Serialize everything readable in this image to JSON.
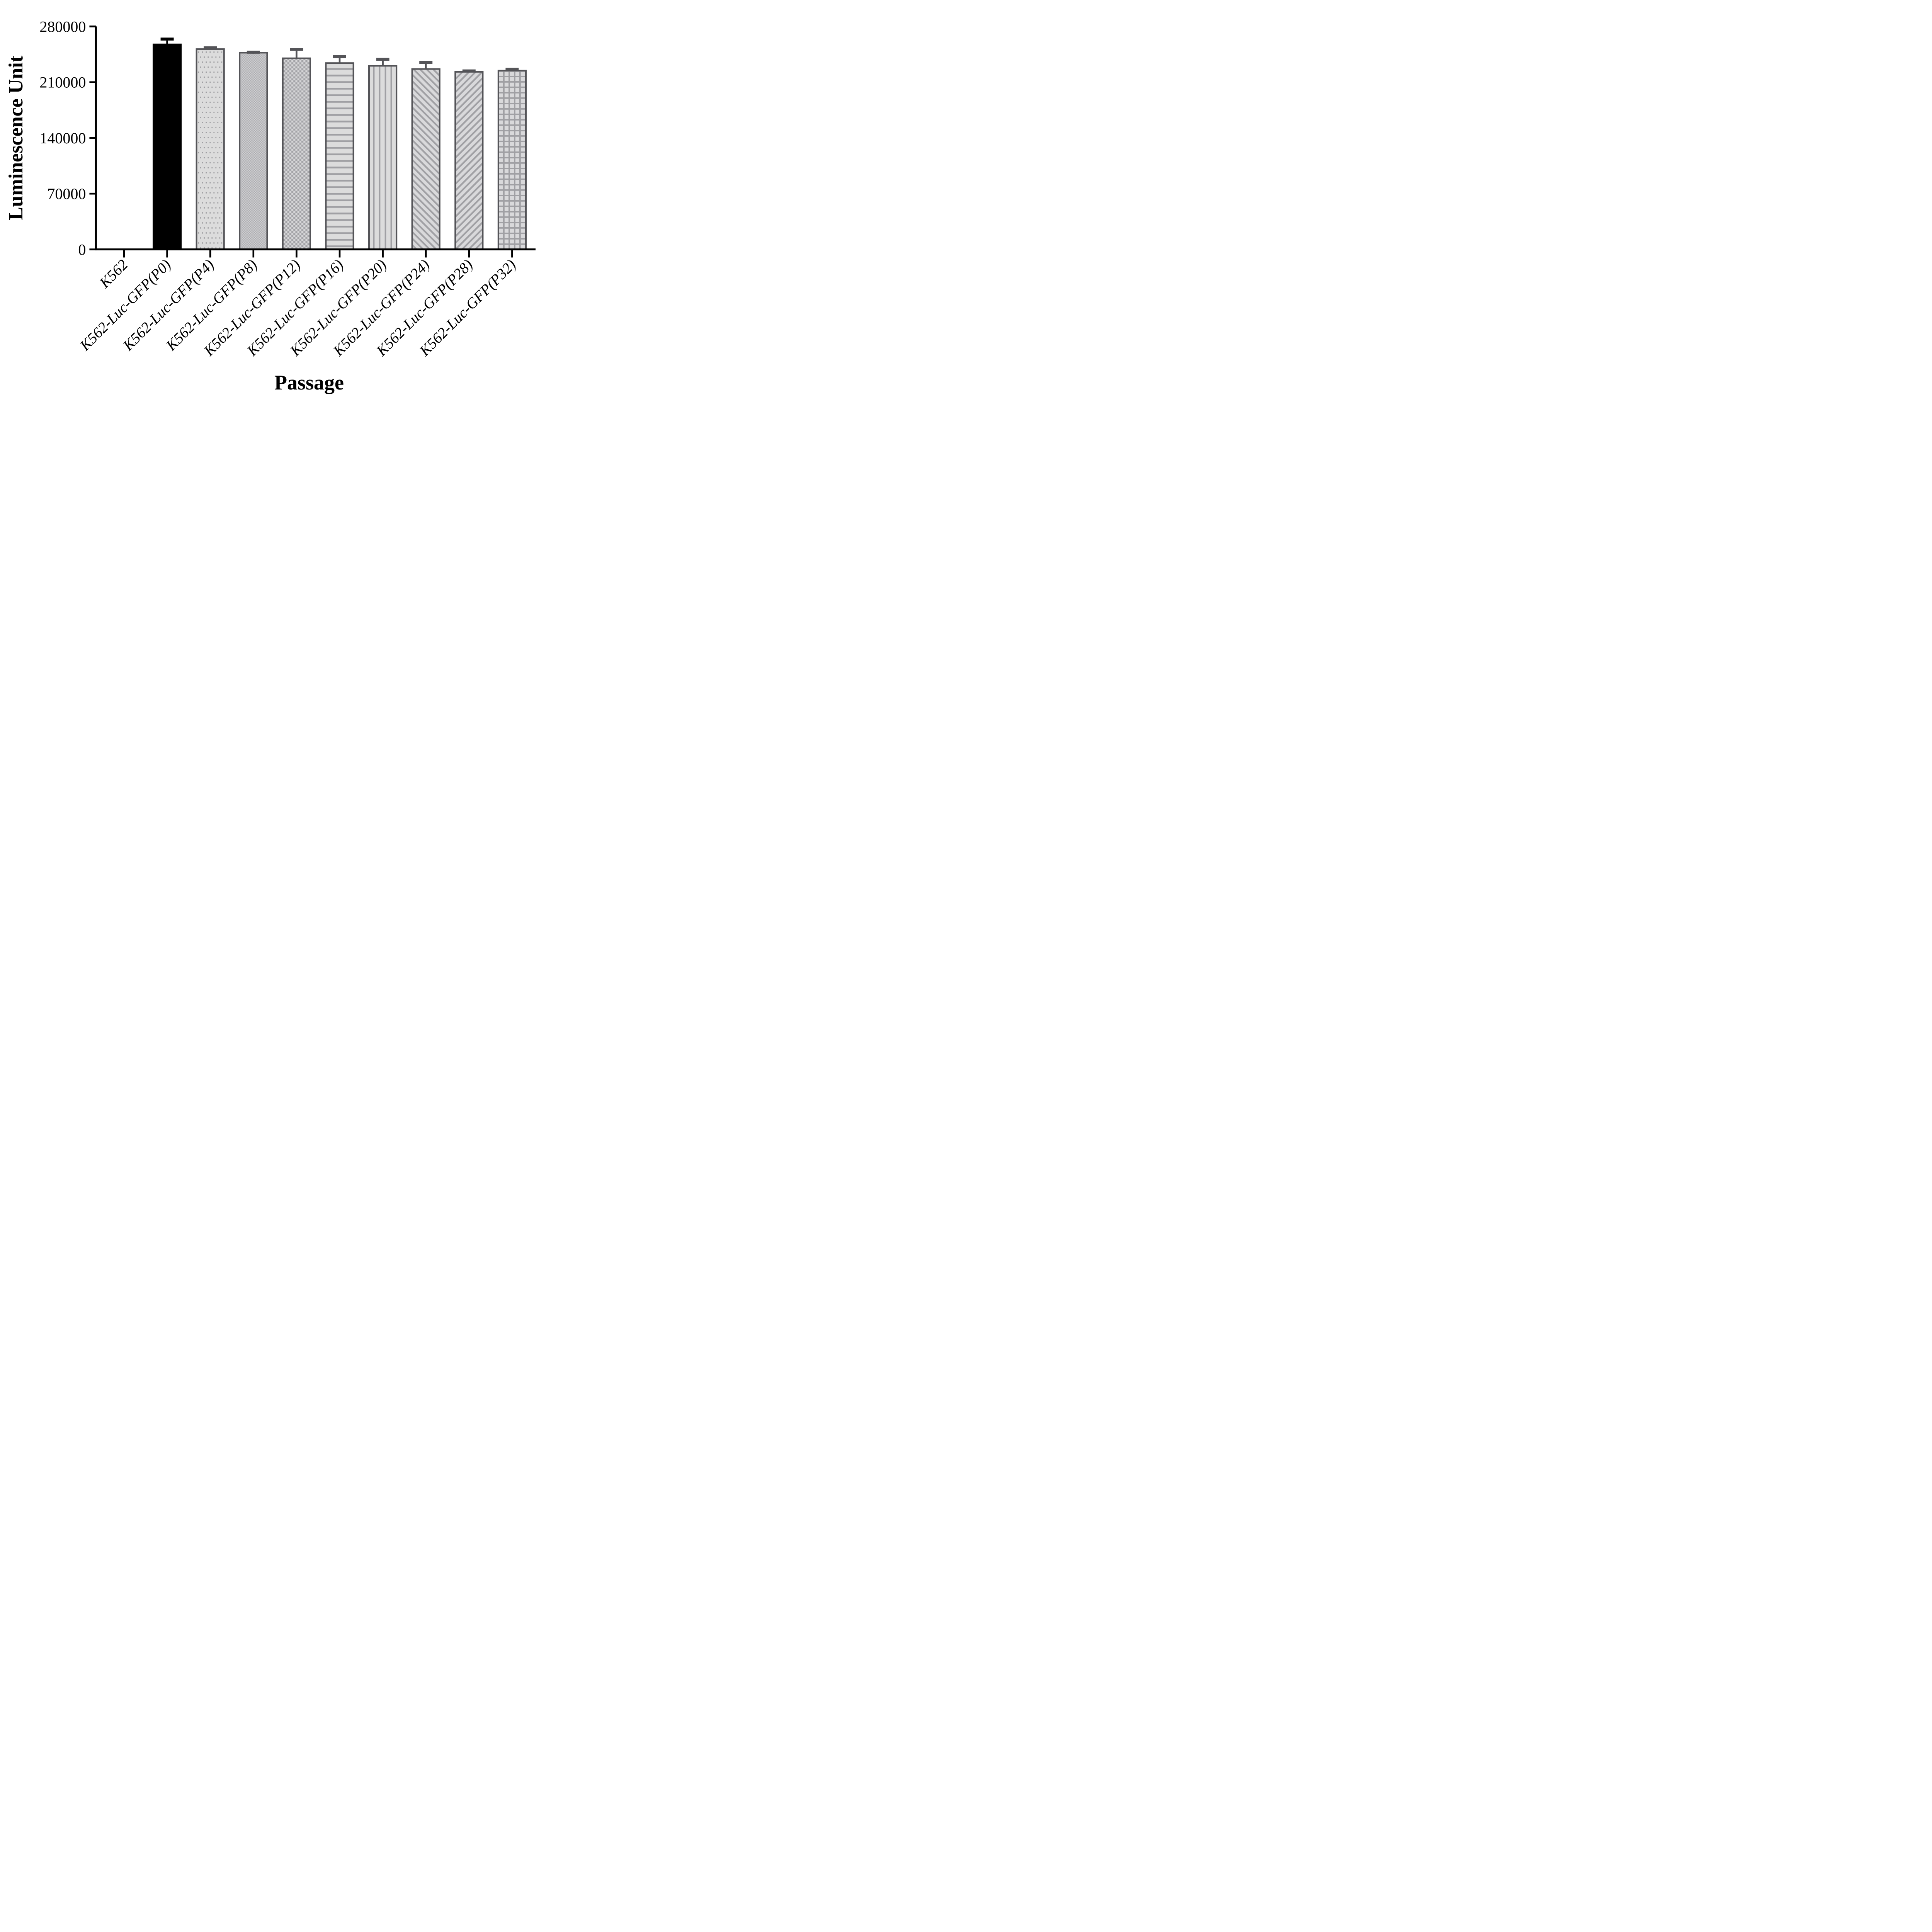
{
  "figure": {
    "background": "#ffffff"
  },
  "chart_data": {
    "type": "bar",
    "title": "",
    "xlabel": "Passage",
    "ylabel": "Luminescence Unit",
    "legend": "none",
    "grid": false,
    "ylim": [
      0,
      280000
    ],
    "y_ticks": [
      0,
      70000,
      140000,
      210000,
      280000
    ],
    "categories": [
      "K562",
      "K562-Luc-GFP(P0)",
      "K562-Luc-GFP(P4)",
      "K562-Luc-GFP(P8)",
      "K562-Luc-GFP(P12)",
      "K562-Luc-GFP(P16)",
      "K562-Luc-GFP(P20)",
      "K562-Luc-GFP(P24)",
      "K562-Luc-GFP(P28)",
      "K562-Luc-GFP(P32)"
    ],
    "values": [
      0,
      257500,
      251500,
      247000,
      240000,
      234000,
      230500,
      226500,
      223000,
      224500
    ],
    "errors": [
      null,
      8500,
      3500,
      2500,
      13000,
      10000,
      10000,
      10000,
      3000,
      3500
    ],
    "bar_styles": [
      "none",
      "solid-black",
      "dots",
      "checker-fine",
      "checker-coarse",
      "stripes-horizontal",
      "stripes-vertical",
      "stripes-diagonal-up",
      "stripes-diagonal-down",
      "grid"
    ],
    "colors": {
      "axis": "#000000",
      "solid_bar": "#000000",
      "bar_fill_light": "#dcdcdc",
      "pattern_gray": "#a0a0a4",
      "bar_border": "#545458"
    }
  }
}
